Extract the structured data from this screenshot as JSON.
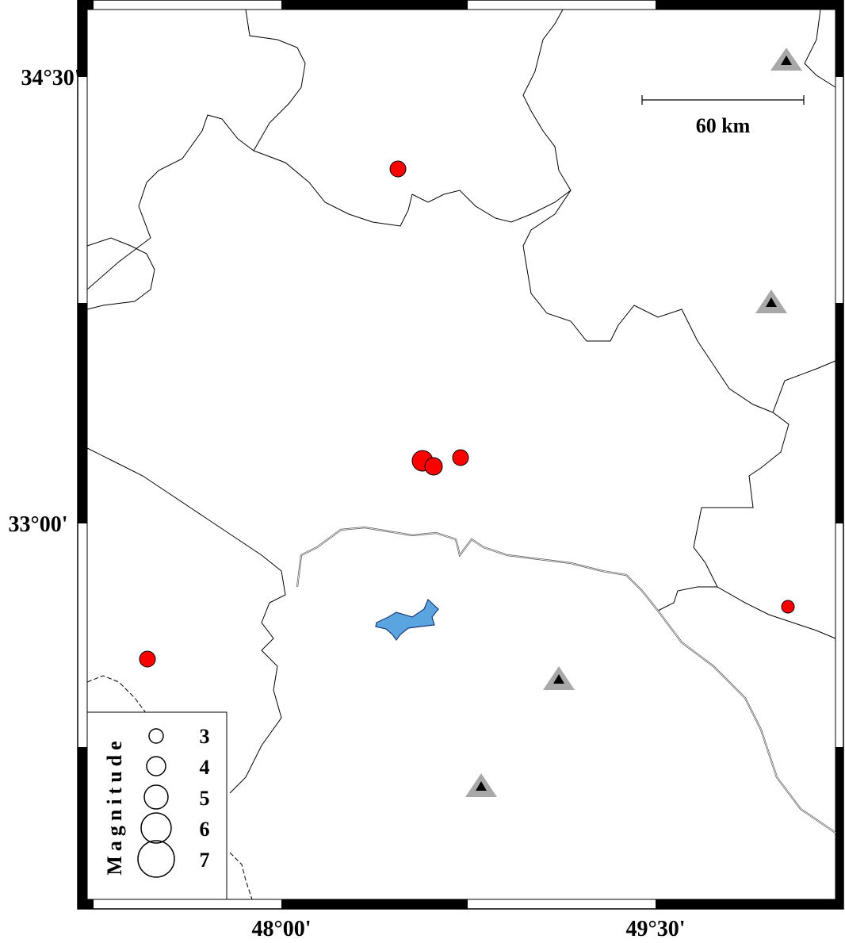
{
  "map": {
    "lat_labels": [
      "34°30'",
      "33°00'"
    ],
    "lon_labels": [
      "48°00'",
      "49°30'"
    ],
    "scale_bar": "60 km",
    "legend": {
      "title": "Magnitude",
      "sizes": [
        3,
        4,
        5,
        6,
        7
      ]
    }
  }
}
